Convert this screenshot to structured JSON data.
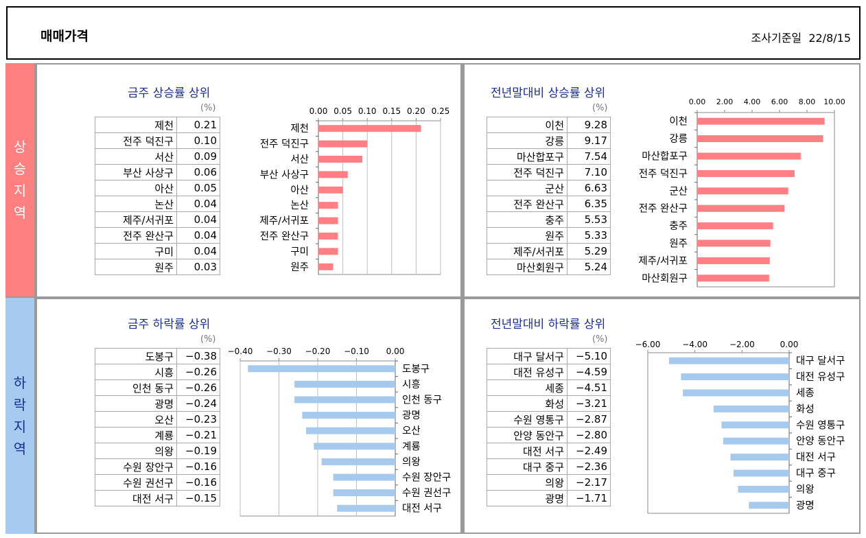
{
  "header": {
    "title": "매매가격",
    "date_label": "조사기준일",
    "date": "22/8/15"
  },
  "side": {
    "up": [
      "상",
      "승",
      "지",
      "역"
    ],
    "down": [
      "하",
      "락",
      "지",
      "역"
    ]
  },
  "unit": "(%)",
  "colors": {
    "rise": "#ff7f85",
    "fall": "#a6caee",
    "title": "#1a2f8a"
  },
  "chart_data": [
    {
      "type": "bar",
      "title": "금주 상승률 상위",
      "orientation": "horizontal",
      "categories": [
        "제천",
        "전주 덕진구",
        "서산",
        "부산 사상구",
        "아산",
        "논산",
        "제주/서귀포",
        "전주 완산구",
        "구미",
        "원주"
      ],
      "values": [
        0.21,
        0.1,
        0.09,
        0.06,
        0.05,
        0.04,
        0.04,
        0.04,
        0.04,
        0.03
      ],
      "xlim": [
        0,
        0.25
      ],
      "ticks": [
        "0.00",
        "0.05",
        "0.10",
        "0.15",
        "0.20",
        "0.25"
      ],
      "grid": true
    },
    {
      "type": "bar",
      "title": "전년말대비 상승률 상위",
      "orientation": "horizontal",
      "categories": [
        "이천",
        "강릉",
        "마산합포구",
        "전주 덕진구",
        "군산",
        "전주 완산구",
        "충주",
        "원주",
        "제주/서귀포",
        "마산회원구"
      ],
      "values": [
        9.28,
        9.17,
        7.54,
        7.1,
        6.63,
        6.35,
        5.53,
        5.33,
        5.29,
        5.24
      ],
      "xlim": [
        0,
        10
      ],
      "ticks": [
        "0.00",
        "2.00",
        "4.00",
        "6.00",
        "8.00",
        "10.00"
      ],
      "grid": false
    },
    {
      "type": "bar",
      "title": "금주 하락률 상위",
      "orientation": "horizontal",
      "categories": [
        "도봉구",
        "시흥",
        "인천 동구",
        "광명",
        "오산",
        "계룡",
        "의왕",
        "수원 장안구",
        "수원 권선구",
        "대전 서구"
      ],
      "values": [
        -0.38,
        -0.26,
        -0.26,
        -0.24,
        -0.23,
        -0.21,
        -0.19,
        -0.16,
        -0.16,
        -0.15
      ],
      "xlim": [
        -0.4,
        0
      ],
      "ticks": [
        "−0.40",
        "−0.30",
        "−0.20",
        "−0.10",
        "0.00"
      ],
      "grid": true
    },
    {
      "type": "bar",
      "title": "전년말대비 하락률 상위",
      "orientation": "horizontal",
      "categories": [
        "대구 달서구",
        "대전 유성구",
        "세종",
        "화성",
        "수원 영통구",
        "안양 동안구",
        "대전 서구",
        "대구 중구",
        "의왕",
        "광명"
      ],
      "values": [
        -5.1,
        -4.59,
        -4.51,
        -3.21,
        -2.87,
        -2.8,
        -2.49,
        -2.36,
        -2.17,
        -1.71
      ],
      "xlim": [
        -6,
        0
      ],
      "ticks": [
        "−6.00",
        "−4.00",
        "−2.00",
        "0.00"
      ],
      "grid": false
    }
  ],
  "tables": [
    {
      "rows": [
        [
          "제천",
          "0.21"
        ],
        [
          "전주 덕진구",
          "0.10"
        ],
        [
          "서산",
          "0.09"
        ],
        [
          "부산 사상구",
          "0.06"
        ],
        [
          "아산",
          "0.05"
        ],
        [
          "논산",
          "0.04"
        ],
        [
          "제주/서귀포",
          "0.04"
        ],
        [
          "전주 완산구",
          "0.04"
        ],
        [
          "구미",
          "0.04"
        ],
        [
          "원주",
          "0.03"
        ]
      ]
    },
    {
      "rows": [
        [
          "이천",
          "9.28"
        ],
        [
          "강릉",
          "9.17"
        ],
        [
          "마산합포구",
          "7.54"
        ],
        [
          "전주 덕진구",
          "7.10"
        ],
        [
          "군산",
          "6.63"
        ],
        [
          "전주 완산구",
          "6.35"
        ],
        [
          "충주",
          "5.53"
        ],
        [
          "원주",
          "5.33"
        ],
        [
          "제주/서귀포",
          "5.29"
        ],
        [
          "마산회원구",
          "5.24"
        ]
      ]
    },
    {
      "rows": [
        [
          "도봉구",
          "−0.38"
        ],
        [
          "시흥",
          "−0.26"
        ],
        [
          "인천 동구",
          "−0.26"
        ],
        [
          "광명",
          "−0.24"
        ],
        [
          "오산",
          "−0.23"
        ],
        [
          "계룡",
          "−0.21"
        ],
        [
          "의왕",
          "−0.19"
        ],
        [
          "수원 장안구",
          "−0.16"
        ],
        [
          "수원 권선구",
          "−0.16"
        ],
        [
          "대전 서구",
          "−0.15"
        ]
      ]
    },
    {
      "rows": [
        [
          "대구 달서구",
          "−5.10"
        ],
        [
          "대전 유성구",
          "−4.59"
        ],
        [
          "세종",
          "−4.51"
        ],
        [
          "화성",
          "−3.21"
        ],
        [
          "수원 영통구",
          "−2.87"
        ],
        [
          "안양 동안구",
          "−2.80"
        ],
        [
          "대전 서구",
          "−2.49"
        ],
        [
          "대구 중구",
          "−2.36"
        ],
        [
          "의왕",
          "−2.17"
        ],
        [
          "광명",
          "−1.71"
        ]
      ]
    }
  ]
}
